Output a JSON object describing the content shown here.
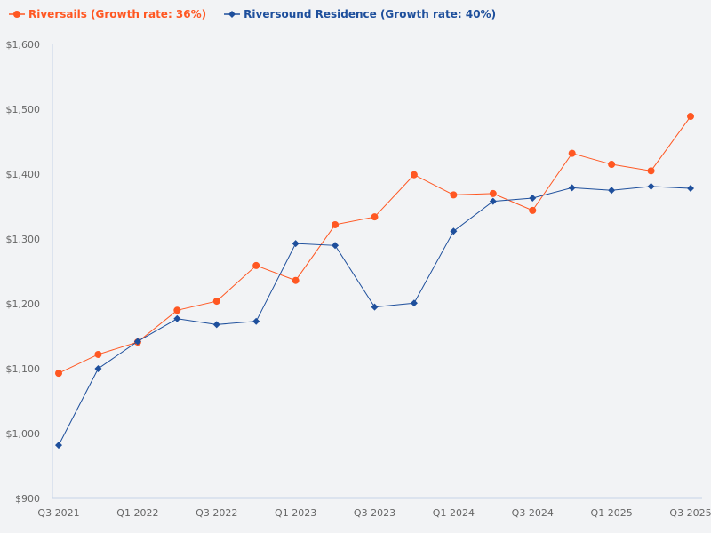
{
  "chart_data": {
    "type": "line",
    "categories": [
      "Q3 2021",
      "Q4 2021",
      "Q1 2022",
      "Q2 2022",
      "Q3 2022",
      "Q4 2022",
      "Q1 2023",
      "Q2 2023",
      "Q3 2023",
      "Q4 2023",
      "Q1 2024",
      "Q2 2024",
      "Q3 2024",
      "Q4 2024",
      "Q1 2025",
      "Q2 2025",
      "Q3 2025"
    ],
    "xtick_labels": [
      "Q3 2021",
      "Q1 2022",
      "Q3 2022",
      "Q1 2023",
      "Q3 2023",
      "Q1 2024",
      "Q3 2024",
      "Q1 2025",
      "Q3 2025"
    ],
    "ytick_labels": [
      "$900",
      "$1,000",
      "$1,100",
      "$1,200",
      "$1,300",
      "$1,400",
      "$1,500",
      "$1,600"
    ],
    "yticks": [
      900,
      1000,
      1100,
      1200,
      1300,
      1400,
      1500,
      1600
    ],
    "ylim": [
      900,
      1600
    ],
    "grid": false,
    "legend_position": "top-left",
    "series": [
      {
        "name": "Riversails (Growth rate: 36%)",
        "color": "#ff5722",
        "marker": "circle",
        "values": [
          1093,
          1122,
          1141,
          1190,
          1204,
          1259,
          1236,
          1322,
          1334,
          1399,
          1368,
          1370,
          1344,
          1432,
          1415,
          1405,
          1489
        ]
      },
      {
        "name": "Riversound Residence (Growth rate: 40%)",
        "color": "#1e4f9c",
        "marker": "diamond",
        "values": [
          982,
          1100,
          1142,
          1177,
          1168,
          1173,
          1293,
          1290,
          1195,
          1201,
          1312,
          1358,
          1363,
          1379,
          1375,
          1381,
          1378
        ]
      }
    ]
  }
}
